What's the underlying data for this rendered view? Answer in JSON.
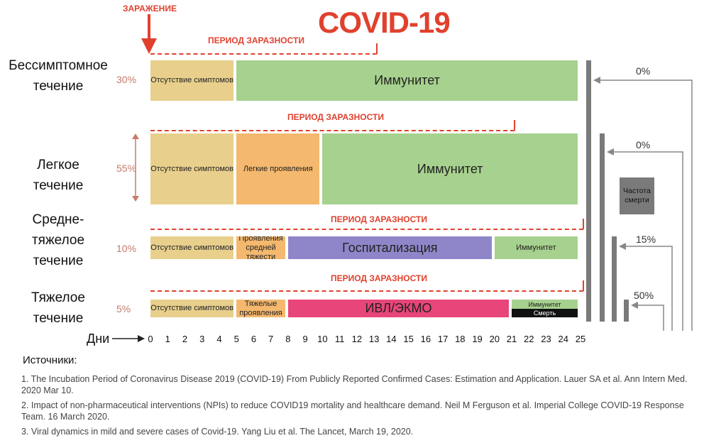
{
  "title": "COVID-19",
  "infection_label": "ЗАРАЖЕНИЕ",
  "period_label": "ПЕРИОД ЗАРАЗНОСТИ",
  "days_label": "Дни",
  "days": [
    "0",
    "1",
    "2",
    "3",
    "4",
    "5",
    "6",
    "7",
    "8",
    "9",
    "10",
    "11",
    "12",
    "13",
    "14",
    "15",
    "16",
    "17",
    "18",
    "19",
    "20",
    "21",
    "22",
    "23",
    "24",
    "25"
  ],
  "rows": [
    {
      "label_lines": [
        "Бессимптомное",
        "течение"
      ],
      "pct": "30%",
      "segments": [
        {
          "text": "Отсутствие симптомов",
          "start": 0,
          "end": 5,
          "color": "#e8cf8c"
        },
        {
          "text": "Иммунитет",
          "start": 5,
          "end": 25,
          "color": "#a7d18e"
        }
      ],
      "contagious": [
        0,
        13
      ]
    },
    {
      "label_lines": [
        "Легкое",
        "течение"
      ],
      "pct": "55%",
      "segments": [
        {
          "text": "Отсутствие симптомов",
          "start": 0,
          "end": 5,
          "color": "#e8cf8c"
        },
        {
          "text": "Легкие проявления",
          "start": 5,
          "end": 10,
          "color": "#f4b86e"
        },
        {
          "text": "Иммунитет",
          "start": 10,
          "end": 25,
          "color": "#a7d18e"
        }
      ],
      "contagious": [
        0,
        21
      ]
    },
    {
      "label_lines": [
        "Средне-",
        "тяжелое",
        "течение"
      ],
      "pct": "10%",
      "segments": [
        {
          "text": "Отсутствие симптомов",
          "start": 0,
          "end": 5,
          "color": "#e8cf8c"
        },
        {
          "text": "Проявления средней тяжести",
          "start": 5,
          "end": 8,
          "color": "#f4b86e"
        },
        {
          "text": "Госпитализация",
          "start": 8,
          "end": 20,
          "color": "#8f86c9"
        },
        {
          "text": "Иммунитет",
          "start": 20,
          "end": 25,
          "color": "#a7d18e"
        }
      ],
      "contagious": [
        0,
        25
      ]
    },
    {
      "label_lines": [
        "Тяжелое",
        "течение"
      ],
      "pct": "5%",
      "segments": [
        {
          "text": "Отсутствие симптомов",
          "start": 0,
          "end": 5,
          "color": "#e8cf8c"
        },
        {
          "text": "Тяжелые проявления",
          "start": 5,
          "end": 8,
          "color": "#f4b86e"
        },
        {
          "text": "ИВЛ/ЭКМО",
          "start": 8,
          "end": 21,
          "color": "#e8457a"
        }
      ],
      "split": {
        "start": 21,
        "end": 25,
        "top_text": "Иммунитет",
        "top_color": "#a7d18e",
        "bottom_text": "Смерть",
        "bottom_color": "#111111"
      },
      "contagious": [
        0,
        25
      ]
    }
  ],
  "death_rate": {
    "label": "Частота смерти",
    "values": [
      "0%",
      "0%",
      "15%",
      "50%"
    ]
  },
  "sources": {
    "title": "Источники:",
    "items": [
      "1. The Incubation Period of Coronavirus Disease 2019 (COVID-19) From Publicly Reported Confirmed Cases: Estimation and Application. Lauer SA et al. Ann Intern Med. 2020 Mar 10.",
      "2. Impact of non-pharmaceutical interventions (NPIs) to reduce COVID19 mortality and healthcare demand. Neil M Ferguson et al. Imperial College COVID-19 Response Team. 16 March 2020.",
      "3. Viral dynamics in mild and severe cases of Covid-19. Yang Liu et al. The Lancet, March 19, 2020."
    ]
  },
  "colors": {
    "accent": "#e0412e",
    "no_symptoms": "#e8cf8c",
    "mild": "#f4b86e",
    "immunity": "#a7d18e",
    "hospital": "#8f86c9",
    "ventilation": "#e8457a",
    "death": "#111111",
    "bars": "#7a7a7a"
  }
}
